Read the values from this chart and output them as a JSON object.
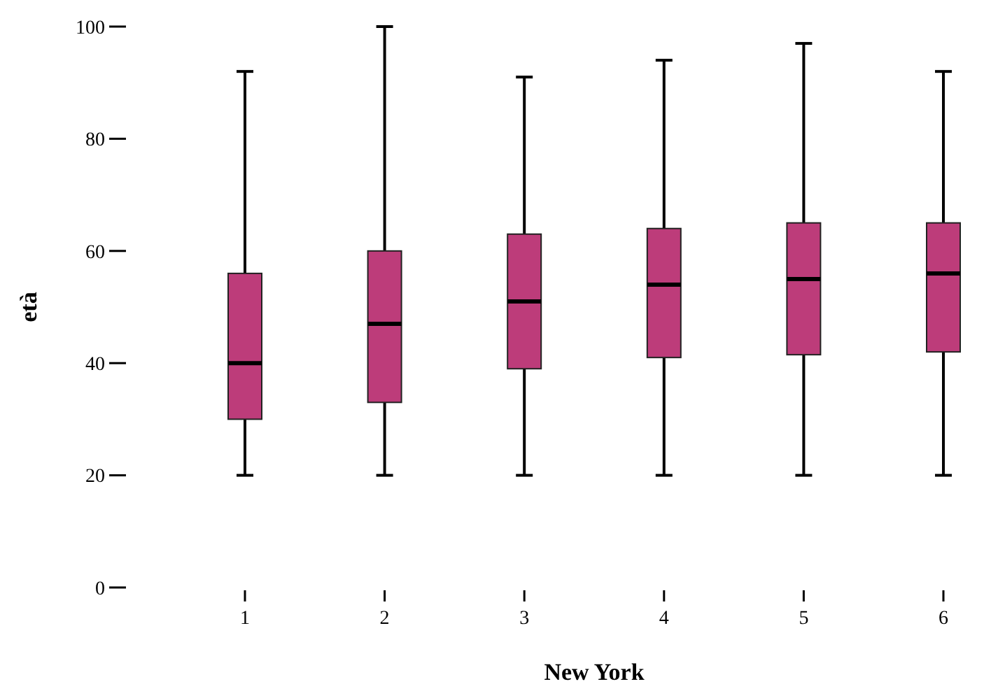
{
  "chart_data": {
    "type": "box",
    "xlabel": "New York",
    "ylabel": "età",
    "categories": [
      "1",
      "2",
      "3",
      "4",
      "5",
      "6"
    ],
    "color": "#bd3c7a",
    "ylim": [
      0,
      100
    ],
    "yticks": [
      0,
      20,
      40,
      60,
      80,
      100
    ],
    "grid": false,
    "boxes": [
      {
        "low": 20,
        "q1": 30,
        "median": 40,
        "q3": 56,
        "high": 92
      },
      {
        "low": 20,
        "q1": 33,
        "median": 47,
        "q3": 60,
        "high": 100
      },
      {
        "low": 20,
        "q1": 39,
        "median": 51,
        "q3": 63,
        "high": 91
      },
      {
        "low": 20,
        "q1": 41,
        "median": 54,
        "q3": 64,
        "high": 94
      },
      {
        "low": 20,
        "q1": 41.5,
        "median": 55,
        "q3": 65,
        "high": 97
      },
      {
        "low": 20,
        "q1": 42,
        "median": 56,
        "q3": 65,
        "high": 92
      }
    ]
  }
}
